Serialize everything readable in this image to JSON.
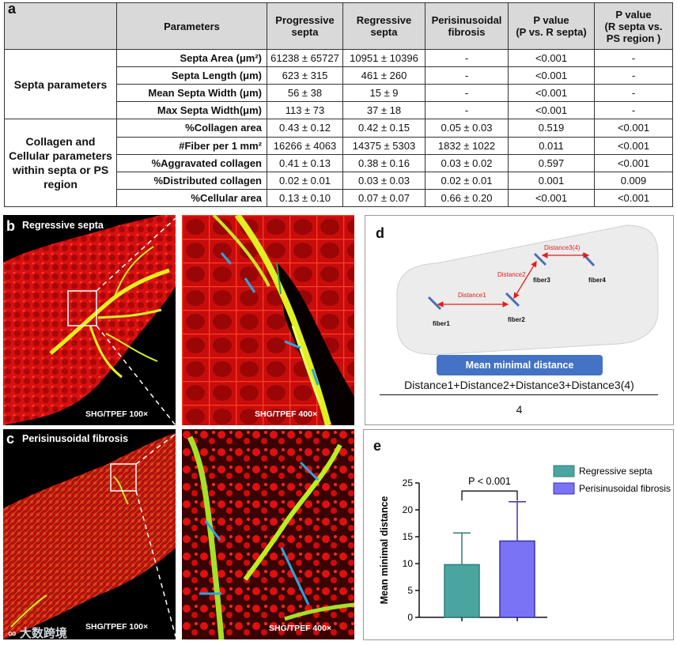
{
  "panel_a": {
    "letter": "a",
    "headers": {
      "parameters": "Parameters",
      "progressive": [
        "Progressive",
        "septa"
      ],
      "regressive": [
        "Regressive",
        "septa"
      ],
      "perisinusoidal": [
        "Perisinusoidal",
        "fibrosis"
      ],
      "pvalue1": [
        "P value",
        "(P vs. R septa)"
      ],
      "pvalue2": [
        "P value",
        "(R septa vs.",
        "PS region )"
      ]
    },
    "groups": [
      {
        "name": "Septa parameters",
        "rows": [
          {
            "param": "Septa Area (μm²)",
            "prog": "61238 ± 65727",
            "reg": "10951 ± 10396",
            "ps": "-",
            "p1": "<0.001",
            "p2": "-"
          },
          {
            "param": "Septa Length (μm)",
            "prog": "623 ± 315",
            "reg": "461 ± 260",
            "ps": "-",
            "p1": "<0.001",
            "p2": "-"
          },
          {
            "param": "Mean Septa Width (μm)",
            "prog": "56 ± 38",
            "reg": "15 ± 9",
            "ps": "-",
            "p1": "<0.001",
            "p2": "-"
          },
          {
            "param": "Max Septa Width(μm)",
            "prog": "113 ± 73",
            "reg": "37 ± 18",
            "ps": "-",
            "p1": "<0.001",
            "p2": "-"
          }
        ]
      },
      {
        "name": "Collagen and Cellular parameters within septa or PS region",
        "rows": [
          {
            "param": "%Collagen area",
            "prog": "0.43 ± 0.12",
            "reg": "0.42 ± 0.15",
            "ps": "0.05 ± 0.03",
            "p1": "0.519",
            "p2": "<0.001"
          },
          {
            "param": "#Fiber per 1 mm²",
            "prog": "16266 ± 4063",
            "reg": "14375 ± 5303",
            "ps": "1832 ± 1022",
            "p1": "0.011",
            "p2": "<0.001"
          },
          {
            "param": "%Aggravated collagen",
            "prog": "0.41 ± 0.13",
            "reg": "0.38 ± 0.16",
            "ps": "0.03 ± 0.02",
            "p1": "0.597",
            "p2": "<0.001"
          },
          {
            "param": "%Distributed collagen",
            "prog": "0.02 ± 0.01",
            "reg": "0.03 ± 0.03",
            "ps": "0.02 ± 0.01",
            "p1": "0.001",
            "p2": "0.009"
          },
          {
            "param": "%Cellular area",
            "prog": "0.13 ± 0.10",
            "reg": "0.07 ± 0.07",
            "ps": "0.66 ± 0.20",
            "p1": "<0.001",
            "p2": "<0.001"
          }
        ]
      }
    ]
  },
  "panel_b": {
    "letter": "b",
    "title": "Regressive septa",
    "mag_left": "SHG/TPEF 100×",
    "mag_right": "SHG/TPEF 400×"
  },
  "panel_c": {
    "letter": "c",
    "title": "Perisinusoidal fibrosis",
    "mag_left": "SHG/TPEF 100×",
    "mag_right": "SHG/TPEF 400×"
  },
  "panel_d": {
    "letter": "d",
    "fibers": [
      "fiber1",
      "fiber2",
      "fiber3",
      "fiber4"
    ],
    "distances": [
      "Distance1",
      "Distance2",
      "Distance3(4)"
    ],
    "button": "Mean minimal distance",
    "numerator": "Distance1+Distance2+Distance3+Distance3(4)",
    "denominator": "4"
  },
  "panel_e": {
    "letter": "e"
  },
  "watermark": "大数跨境",
  "colors": {
    "table_header": "#d9d9d9",
    "tissue_red": "#e01010",
    "collagen_green": "#b8f020",
    "arrow_blue": "#29a6e0",
    "distance_red": "#e02020",
    "button_blue": "#4472c4",
    "bar_teal": "#4aa5a0",
    "bar_purple": "#7b73f5"
  },
  "chart_data": {
    "type": "bar",
    "categories": [
      "Regressive septa",
      "Perisinusoidal fibrosis"
    ],
    "values": [
      9.8,
      14.2
    ],
    "error": [
      5.9,
      7.3
    ],
    "ylabel": "Mean minimal distance",
    "xlabel": "",
    "ylim": [
      0,
      25
    ],
    "yticks": [
      0,
      5,
      10,
      15,
      20,
      25
    ],
    "legend": [
      "Regressive septa",
      "Perisinusoidal fibrosis"
    ],
    "legend_position": "top-right",
    "annotation": "P < 0.001",
    "colors": [
      "#4aa5a0",
      "#7b73f5"
    ]
  }
}
